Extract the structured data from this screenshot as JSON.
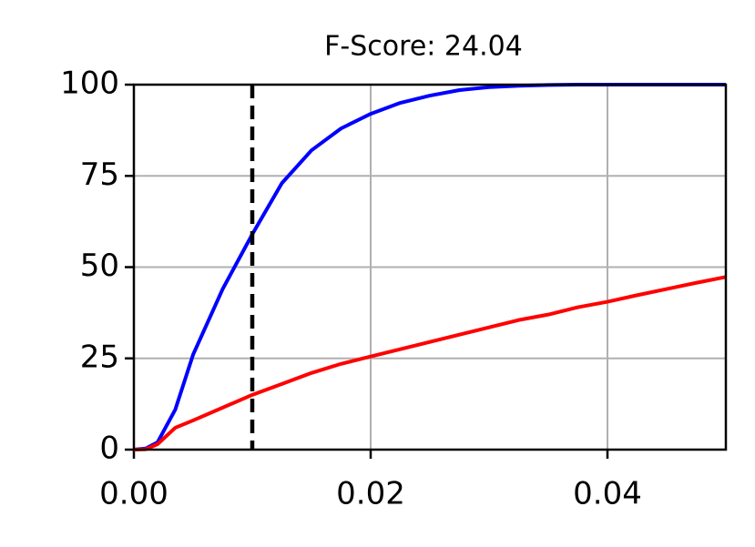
{
  "chart_data": {
    "type": "line",
    "title": "F-Score: 24.04",
    "x": [
      0,
      0.001,
      0.002,
      0.0035,
      0.005,
      0.0075,
      0.01,
      0.0125,
      0.015,
      0.0175,
      0.02,
      0.0225,
      0.025,
      0.0275,
      0.03,
      0.0325,
      0.035,
      0.0375,
      0.04,
      0.0425,
      0.045,
      0.0475,
      0.05
    ],
    "series": [
      {
        "color": "#0000ff",
        "values": [
          0,
          0.3,
          2,
          11,
          26,
          44,
          59,
          73,
          82,
          88,
          92,
          95,
          97,
          98.5,
          99.3,
          99.7,
          99.9,
          100,
          100,
          100,
          100,
          100,
          100
        ]
      },
      {
        "color": "#ff0000",
        "values": [
          0,
          0.1,
          1.5,
          6,
          8,
          11.5,
          15,
          18,
          21,
          23.5,
          25.5,
          27.5,
          29.5,
          31.5,
          33.5,
          35.5,
          37,
          39,
          40.5,
          42.3,
          44,
          45.7,
          47.3
        ]
      }
    ],
    "vline_x": 0.01,
    "vline_color": "#000000",
    "xlim": [
      0,
      0.05
    ],
    "xticks": [
      {
        "value": 0,
        "label": "0.00"
      },
      {
        "value": 0.02,
        "label": "0.02"
      },
      {
        "value": 0.04,
        "label": "0.04"
      }
    ],
    "ylim": [
      0,
      100
    ],
    "yticks": [
      0,
      25,
      50,
      75,
      100
    ],
    "grid": true
  }
}
